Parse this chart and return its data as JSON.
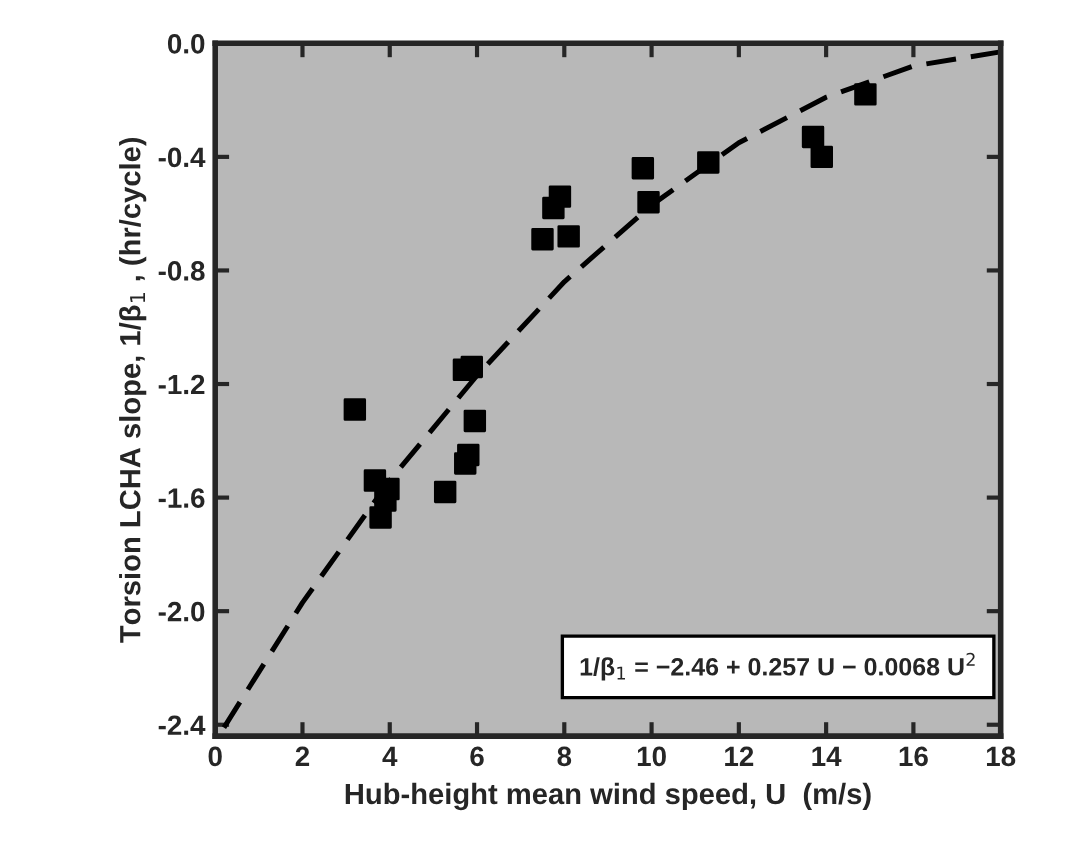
{
  "chart_data": {
    "type": "scatter",
    "xlabel": "Hub-height mean wind speed, U  (m/s)",
    "ylabel": "Torsion LCHA slope, 1/β$_{1}$ , (hr/cycle)",
    "series": [
      {
        "color": "#000000",
        "marker": "square",
        "x": [
          3.2,
          3.66,
          3.97,
          3.9,
          3.79,
          5.27,
          5.95,
          5.8,
          5.73,
          5.88,
          5.7,
          7.5,
          7.9,
          7.75,
          8.1,
          9.8,
          9.93,
          11.3,
          13.7,
          13.9,
          14.9
        ],
        "values": [
          -1.29,
          -1.54,
          -1.57,
          -1.61,
          -1.67,
          -1.58,
          -1.33,
          -1.45,
          -1.48,
          -1.14,
          -1.15,
          -0.69,
          -0.54,
          -0.58,
          -0.68,
          -0.44,
          -0.56,
          -0.42,
          -0.33,
          -0.4,
          -0.18
        ]
      },
      {
        "type": "line",
        "color": "#000000",
        "line_style": "dashed",
        "marker": "none",
        "x": [
          0.2,
          2,
          4,
          6,
          8,
          10,
          12,
          14,
          16,
          18
        ],
        "values": [
          -2.41,
          -1.97,
          -1.54,
          -1.17,
          -0.84,
          -0.57,
          -0.35,
          -0.19,
          -0.08,
          -0.03
        ]
      }
    ],
    "xlim": [
      0,
      18
    ],
    "xticks": [
      0,
      2,
      4,
      6,
      8,
      10,
      12,
      14,
      16,
      18
    ],
    "ylim": [
      -2.44,
      0
    ],
    "yticks": [
      {
        "value": -2.4,
        "label": "-2.4"
      },
      {
        "value": -2.0,
        "label": "-2.0"
      },
      {
        "value": -1.6,
        "label": "-1.6"
      },
      {
        "value": -1.2,
        "label": "-1.2"
      },
      {
        "value": -0.8,
        "label": "-0.8"
      },
      {
        "value": -0.4,
        "label": "-0.4"
      },
      {
        "value": 0.0,
        "label": "0.0"
      }
    ],
    "annotations": [
      "1/β$_{1}$ = −2.46 + 0.257 U − 0.0068 U$^{2}$"
    ],
    "grid": false,
    "legend": false
  }
}
